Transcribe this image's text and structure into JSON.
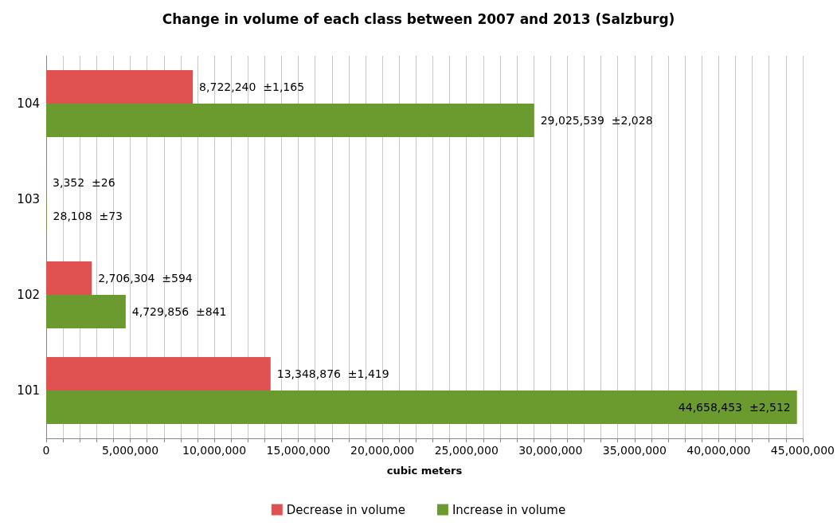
{
  "chart_data": {
    "type": "bar",
    "orientation": "horizontal",
    "title": "Change in volume of each class between 2007 and 2013 (Salzburg)",
    "xlabel": "cubic meters",
    "categories": [
      "104",
      "103",
      "102",
      "101"
    ],
    "series": [
      {
        "name": "Decrease in volume",
        "color": "#e05252",
        "values": [
          8722240,
          3352,
          2706304,
          13348876
        ],
        "value_labels": [
          "8,722,240  ±1,165",
          "3,352  ±26",
          "2,706,304  ±594",
          "13,348,876  ±1,419"
        ]
      },
      {
        "name": "Increase in volume",
        "color": "#6b9a2e",
        "values": [
          29025539,
          28108,
          4729856,
          44658453
        ],
        "value_labels": [
          "29,025,539  ±2,028",
          "28,108  ±73",
          "4,729,856  ±841",
          "44,658,453  ±2,512"
        ]
      }
    ],
    "xlim": [
      0,
      45000000
    ],
    "xticks": [
      {
        "value": 0,
        "label": "0"
      },
      {
        "value": 1000000,
        "label": null
      },
      {
        "value": 2000000,
        "label": null
      },
      {
        "value": 3000000,
        "label": null
      },
      {
        "value": 4000000,
        "label": null
      },
      {
        "value": 5000000,
        "label": "5,000,000"
      },
      {
        "value": 6000000,
        "label": null
      },
      {
        "value": 7000000,
        "label": null
      },
      {
        "value": 8000000,
        "label": null
      },
      {
        "value": 9000000,
        "label": null
      },
      {
        "value": 10000000,
        "label": "10,000,000"
      },
      {
        "value": 11000000,
        "label": null
      },
      {
        "value": 12000000,
        "label": null
      },
      {
        "value": 13000000,
        "label": null
      },
      {
        "value": 14000000,
        "label": null
      },
      {
        "value": 15000000,
        "label": "15,000,000"
      },
      {
        "value": 16000000,
        "label": null
      },
      {
        "value": 17000000,
        "label": null
      },
      {
        "value": 18000000,
        "label": null
      },
      {
        "value": 19000000,
        "label": null
      },
      {
        "value": 20000000,
        "label": "20,000,000"
      },
      {
        "value": 21000000,
        "label": null
      },
      {
        "value": 22000000,
        "label": null
      },
      {
        "value": 23000000,
        "label": null
      },
      {
        "value": 24000000,
        "label": null
      },
      {
        "value": 25000000,
        "label": "25,000,000"
      },
      {
        "value": 26000000,
        "label": null
      },
      {
        "value": 27000000,
        "label": null
      },
      {
        "value": 28000000,
        "label": null
      },
      {
        "value": 29000000,
        "label": null
      },
      {
        "value": 30000000,
        "label": "30,000,000"
      },
      {
        "value": 31000000,
        "label": null
      },
      {
        "value": 32000000,
        "label": null
      },
      {
        "value": 33000000,
        "label": null
      },
      {
        "value": 34000000,
        "label": null
      },
      {
        "value": 35000000,
        "label": "35,000,000"
      },
      {
        "value": 36000000,
        "label": null
      },
      {
        "value": 37000000,
        "label": null
      },
      {
        "value": 38000000,
        "label": null
      },
      {
        "value": 39000000,
        "label": null
      },
      {
        "value": 40000000,
        "label": "40,000,000"
      },
      {
        "value": 41000000,
        "label": null
      },
      {
        "value": 42000000,
        "label": null
      },
      {
        "value": 43000000,
        "label": null
      },
      {
        "value": 44000000,
        "label": null
      },
      {
        "value": 45000000,
        "label": "45,000,000"
      }
    ],
    "grid": "x",
    "legend": "bottom"
  }
}
